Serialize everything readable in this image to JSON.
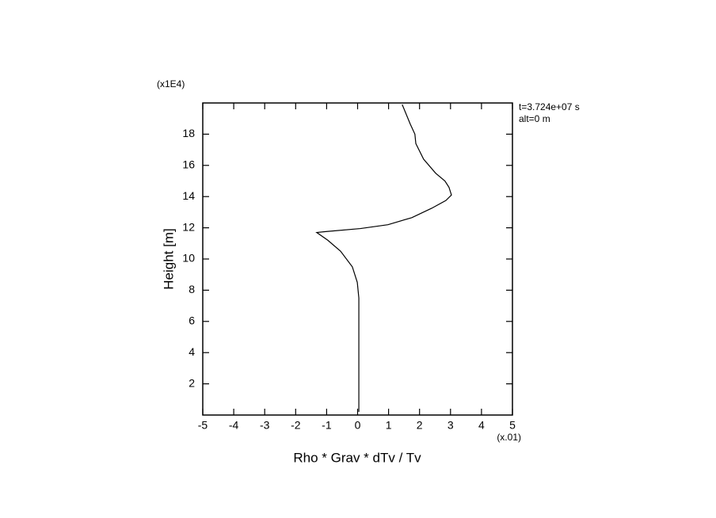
{
  "chart_data": {
    "type": "line",
    "xlabel": "Rho * Grav * dTv / Tv",
    "ylabel": "Height [m]",
    "x_multiplier": "(x.01)",
    "y_multiplier": "(x1E4)",
    "annotations": [
      "t=3.724e+07 s",
      "alt=0 m"
    ],
    "xlim": [
      -5,
      5
    ],
    "ylim": [
      0,
      20
    ],
    "xticks": [
      -5,
      -4,
      -3,
      -2,
      -1,
      0,
      1,
      2,
      3,
      4,
      5
    ],
    "yticks": [
      2,
      4,
      6,
      8,
      10,
      12,
      14,
      16,
      18
    ],
    "grid": false,
    "series": [
      {
        "color": "#000000",
        "x": [
          0.04,
          0.04,
          -0.01,
          -0.17,
          -0.55,
          -0.96,
          -1.32,
          -1.06,
          0.09,
          0.98,
          1.75,
          2.39,
          2.85,
          3.03,
          2.95,
          2.82,
          2.52,
          2.13,
          1.88,
          1.85,
          1.7,
          1.44
        ],
        "values": [
          0.2,
          7.5,
          8.5,
          9.5,
          10.5,
          11.2,
          11.7,
          11.75,
          11.95,
          12.2,
          12.65,
          13.25,
          13.75,
          14.1,
          14.6,
          15.0,
          15.5,
          16.4,
          17.4,
          18.0,
          18.65,
          19.9
        ]
      }
    ]
  }
}
